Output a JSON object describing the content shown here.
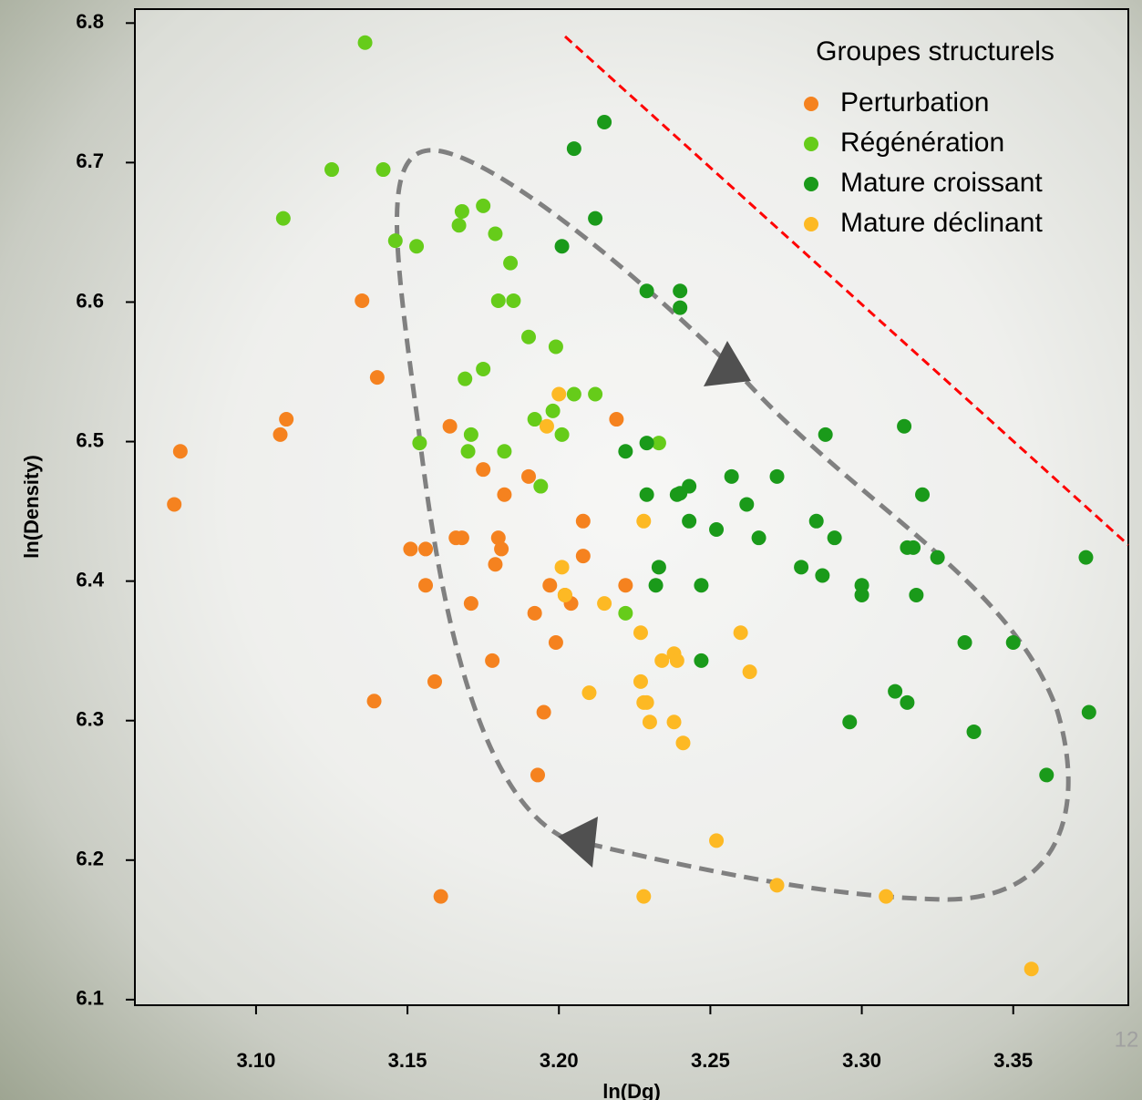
{
  "page_number": "12",
  "chart_data": {
    "type": "scatter",
    "x_label": "ln(Dg)",
    "y_label": "ln(Density)",
    "legend_title": "Groupes structurels",
    "legend": "topright",
    "xlim": [
      3.06,
      3.388
    ],
    "ylim": [
      6.096,
      6.81
    ],
    "xticks": [
      {
        "value": 3.1,
        "label": "3.10"
      },
      3.15,
      {
        "value": 3.2,
        "label": "3.20"
      },
      3.25,
      {
        "value": 3.3,
        "label": "3.30"
      },
      3.35
    ],
    "yticks": [
      6.1,
      6.2,
      6.3,
      6.4,
      6.5,
      6.6,
      6.7,
      6.8
    ],
    "series": [
      {
        "name": "Perturbation",
        "color": "#f5821f",
        "x": [
          3.073,
          3.075,
          3.108,
          3.11,
          3.135,
          3.14,
          3.139,
          3.151,
          3.156,
          3.156,
          3.159,
          3.161,
          3.164,
          3.166,
          3.168,
          3.171,
          3.175,
          3.179,
          3.18,
          3.181,
          3.178,
          3.182,
          3.19,
          3.192,
          3.193,
          3.195,
          3.197,
          3.199,
          3.202,
          3.204,
          3.208,
          3.208,
          3.219,
          3.222
        ],
        "values": [
          6.455,
          6.493,
          6.505,
          6.516,
          6.601,
          6.546,
          6.314,
          6.423,
          6.423,
          6.397,
          6.328,
          6.174,
          6.511,
          6.431,
          6.431,
          6.384,
          6.48,
          6.412,
          6.431,
          6.423,
          6.343,
          6.462,
          6.475,
          6.377,
          6.261,
          6.306,
          6.397,
          6.356,
          6.39,
          6.384,
          6.443,
          6.418,
          6.516,
          6.397
        ]
      },
      {
        "name": "Régénération",
        "color": "#66cc1a",
        "x": [
          3.136,
          3.125,
          3.142,
          3.109,
          3.146,
          3.153,
          3.154,
          3.167,
          3.168,
          3.175,
          3.179,
          3.18,
          3.185,
          3.184,
          3.169,
          3.175,
          3.171,
          3.17,
          3.182,
          3.19,
          3.192,
          3.194,
          3.198,
          3.199,
          3.201,
          3.205,
          3.212,
          3.222,
          3.233
        ],
        "values": [
          6.786,
          6.695,
          6.695,
          6.66,
          6.644,
          6.64,
          6.499,
          6.655,
          6.665,
          6.669,
          6.649,
          6.601,
          6.601,
          6.628,
          6.545,
          6.552,
          6.505,
          6.493,
          6.493,
          6.575,
          6.516,
          6.468,
          6.522,
          6.568,
          6.505,
          6.534,
          6.534,
          6.377,
          6.499
        ]
      },
      {
        "name": "Mature croissant",
        "color": "#1a9a1a",
        "x": [
          3.215,
          3.205,
          3.212,
          3.201,
          3.229,
          3.24,
          3.24,
          3.229,
          3.222,
          3.229,
          3.239,
          3.24,
          3.243,
          3.243,
          3.252,
          3.233,
          3.232,
          3.247,
          3.247,
          3.257,
          3.262,
          3.266,
          3.272,
          3.28,
          3.285,
          3.287,
          3.288,
          3.291,
          3.3,
          3.3,
          3.296,
          3.311,
          3.315,
          3.314,
          3.315,
          3.317,
          3.32,
          3.325,
          3.318,
          3.334,
          3.35,
          3.337,
          3.361,
          3.374,
          3.375
        ],
        "values": [
          6.729,
          6.71,
          6.66,
          6.64,
          6.608,
          6.608,
          6.596,
          6.499,
          6.493,
          6.462,
          6.462,
          6.463,
          6.468,
          6.443,
          6.437,
          6.41,
          6.397,
          6.397,
          6.343,
          6.475,
          6.455,
          6.431,
          6.475,
          6.41,
          6.443,
          6.404,
          6.505,
          6.431,
          6.397,
          6.39,
          6.299,
          6.321,
          6.313,
          6.511,
          6.424,
          6.424,
          6.462,
          6.417,
          6.39,
          6.356,
          6.356,
          6.292,
          6.261,
          6.417,
          6.306
        ]
      },
      {
        "name": "Mature déclinant",
        "color": "#fdb924",
        "x": [
          3.2,
          3.196,
          3.201,
          3.202,
          3.215,
          3.21,
          3.228,
          3.227,
          3.227,
          3.228,
          3.229,
          3.23,
          3.234,
          3.238,
          3.239,
          3.238,
          3.241,
          3.26,
          3.263,
          3.252,
          3.228,
          3.272,
          3.308,
          3.356
        ],
        "values": [
          6.534,
          6.511,
          6.41,
          6.39,
          6.384,
          6.32,
          6.443,
          6.363,
          6.328,
          6.313,
          6.313,
          6.299,
          6.343,
          6.348,
          6.343,
          6.299,
          6.284,
          6.363,
          6.335,
          6.214,
          6.174,
          6.182,
          6.174,
          6.122
        ]
      }
    ]
  }
}
